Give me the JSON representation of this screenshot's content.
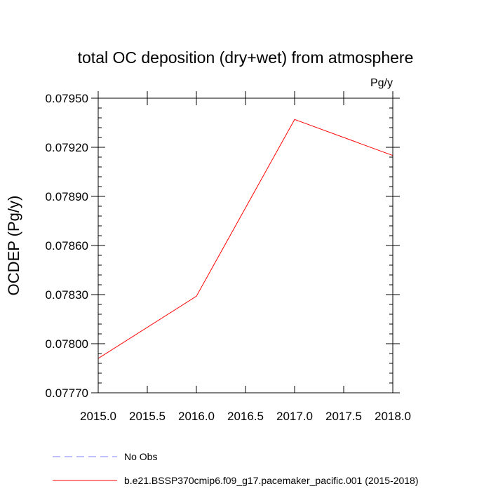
{
  "chart_data": {
    "type": "line",
    "title": "total OC deposition (dry+wet) from atmosphere",
    "units_label": "Pg/y",
    "ylabel": "OCDEP  (Pg/y)",
    "xlabel": "",
    "xlim": [
      2015.0,
      2018.0
    ],
    "ylim": [
      0.0777,
      0.0795
    ],
    "x_ticks": [
      2015.0,
      2015.5,
      2016.0,
      2016.5,
      2017.0,
      2017.5,
      2018.0
    ],
    "x_tick_labels": [
      "2015.0",
      "2015.5",
      "2016.0",
      "2016.5",
      "2017.0",
      "2017.5",
      "2018.0"
    ],
    "y_ticks": [
      0.0777,
      0.078,
      0.0783,
      0.0786,
      0.0789,
      0.0792,
      0.0795
    ],
    "y_tick_labels": [
      "0.07770",
      "0.07800",
      "0.07830",
      "0.07860",
      "0.07890",
      "0.07920",
      "0.07950"
    ],
    "series": [
      {
        "name": "b.e21.BSSP370cmip6.f09_g17.pacemaker_pacific.001 (2015-2018)",
        "color": "#ff0000",
        "dash": "solid",
        "x": [
          2015.0,
          2016.0,
          2017.0,
          2018.0
        ],
        "y": [
          0.07791,
          0.07829,
          0.07937,
          0.07915
        ]
      }
    ],
    "legend": [
      {
        "label": "No Obs",
        "color": "#8080ff",
        "dash": "dashed"
      },
      {
        "label": "b.e21.BSSP370cmip6.f09_g17.pacemaker_pacific.001 (2015-2018)",
        "color": "#ff0000",
        "dash": "solid"
      }
    ],
    "legend_position": "bottom-left"
  }
}
